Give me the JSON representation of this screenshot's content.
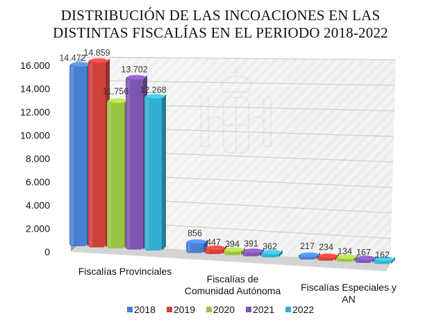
{
  "chart_data": {
    "type": "bar",
    "variant": "3d-clustered",
    "title_lines": [
      "DISTRIBUCIÓN DE LAS INCOACIONES EN LAS",
      "DISTINTAS FISCALÍAS EN EL PERIODO 2018-2022"
    ],
    "xlabel": "",
    "ylabel": "",
    "ylim": [
      0,
      16000
    ],
    "yticks": [
      0,
      2000,
      4000,
      6000,
      8000,
      10000,
      12000,
      14000,
      16000
    ],
    "ytick_labels": [
      "0",
      "2.000",
      "4.000",
      "6.000",
      "8.000",
      "10.000",
      "12.000",
      "14.000",
      "16.000"
    ],
    "grid": true,
    "legend_position": "bottom",
    "categories": [
      "Fiscalías Provinciales",
      "Fiscalías de Comunidad Autónoma",
      "Fiscalías Especiales y AN"
    ],
    "category_lines": [
      [
        "Fiscalías Provinciales"
      ],
      [
        "Fiscalías de",
        "Comunidad Autónoma"
      ],
      [
        "Fiscalías Especiales y",
        "AN"
      ]
    ],
    "series": [
      {
        "name": "2018",
        "color": "#4a7fd0",
        "values": [
          14472,
          856,
          217
        ],
        "labels": [
          "14.472",
          "856",
          "217"
        ]
      },
      {
        "name": "2019",
        "color": "#d0413a",
        "values": [
          14859,
          447,
          234
        ],
        "labels": [
          "14.859",
          "447",
          "234"
        ]
      },
      {
        "name": "2020",
        "color": "#9bc444",
        "values": [
          11756,
          394,
          134
        ],
        "labels": [
          "11.756",
          "394",
          "134"
        ]
      },
      {
        "name": "2021",
        "color": "#7c55b0",
        "values": [
          13702,
          391,
          167
        ],
        "labels": [
          "13.702",
          "391",
          "167"
        ]
      },
      {
        "name": "2022",
        "color": "#34aed0",
        "values": [
          12268,
          362,
          162
        ],
        "labels": [
          "12.268",
          "362",
          "162"
        ]
      }
    ]
  }
}
